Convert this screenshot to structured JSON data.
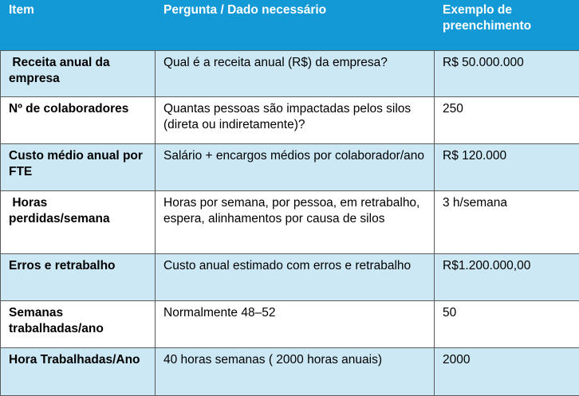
{
  "table": {
    "headers": [
      "Item",
      "Pergunta / Dado necessário",
      "Exemplo de preenchimento"
    ],
    "rows": [
      {
        "item": " Receita anual da empresa",
        "question": "Qual é a receita anual (R$) da empresa?",
        "example": "R$ 50.000.000"
      },
      {
        "item": "Nº de colaboradores",
        "question": "Quantas pessoas são impactadas pelos silos (direta ou indiretamente)?",
        "example": "250"
      },
      {
        "item": "Custo médio anual por FTE",
        "question": "Salário + encargos médios por colaborador/ano",
        "example": "R$ 120.000"
      },
      {
        "item": " Horas perdidas/semana",
        "question": "Horas por semana, por pessoa, em retrabalho, espera, alinhamentos por causa de silos",
        "example": "3 h/semana"
      },
      {
        "item": "Erros e retrabalho",
        "question": "Custo anual estimado com erros e retrabalho",
        "example": "R$1.200.000,00"
      },
      {
        "item": "Semanas trabalhadas/ano",
        "question": "Normalmente 48–52",
        "example": "50"
      },
      {
        "item": "Hora Trabalhadas/Ano",
        "question": "40 horas semanas ( 2000 horas anuais)",
        "example": "2000"
      }
    ]
  },
  "colors": {
    "header_bg": "#1299d6",
    "header_text": "#ffffff",
    "shaded_row_bg": "#cce8f4",
    "plain_row_bg": "#ffffff",
    "border": "#5a5a5a"
  }
}
